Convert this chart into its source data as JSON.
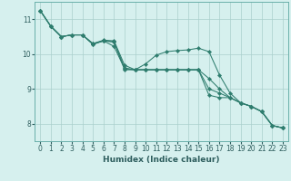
{
  "title": "",
  "xlabel": "Humidex (Indice chaleur)",
  "ylabel": "",
  "background_color": "#d6f0ee",
  "line_color": "#2e7d6e",
  "grid_color": "#aacfcc",
  "xlim": [
    -0.5,
    23.5
  ],
  "ylim": [
    7.5,
    11.5
  ],
  "yticks": [
    8,
    9,
    10,
    11
  ],
  "xticks": [
    0,
    1,
    2,
    3,
    4,
    5,
    6,
    7,
    8,
    9,
    10,
    11,
    12,
    13,
    14,
    15,
    16,
    17,
    18,
    19,
    20,
    21,
    22,
    23
  ],
  "series": [
    [
      11.25,
      10.8,
      10.5,
      10.55,
      10.55,
      10.3,
      10.38,
      10.35,
      9.6,
      9.55,
      9.55,
      9.55,
      9.55,
      9.55,
      9.55,
      9.55,
      9.3,
      9.0,
      8.75,
      8.6,
      8.5,
      8.35,
      7.95,
      7.88
    ],
    [
      11.25,
      10.8,
      10.5,
      10.55,
      10.55,
      10.3,
      10.4,
      10.38,
      9.68,
      9.55,
      9.72,
      9.97,
      10.07,
      10.1,
      10.12,
      10.17,
      10.07,
      9.4,
      8.88,
      8.6,
      8.5,
      8.35,
      7.95,
      7.88
    ],
    [
      11.25,
      10.8,
      10.5,
      10.55,
      10.55,
      10.28,
      10.38,
      10.22,
      9.58,
      9.55,
      9.55,
      9.55,
      9.55,
      9.55,
      9.55,
      9.55,
      9.0,
      8.88,
      8.75,
      8.6,
      8.5,
      8.35,
      7.95,
      7.88
    ],
    [
      11.25,
      10.8,
      10.5,
      10.55,
      10.55,
      10.28,
      10.38,
      10.35,
      9.55,
      9.55,
      9.55,
      9.55,
      9.55,
      9.55,
      9.55,
      9.55,
      8.82,
      8.75,
      8.75,
      8.6,
      8.5,
      8.35,
      7.95,
      7.88
    ]
  ],
  "tick_fontsize": 5.5,
  "xlabel_fontsize": 6.5,
  "spine_color": "#6aafaa",
  "tick_color": "#2e5e5e"
}
